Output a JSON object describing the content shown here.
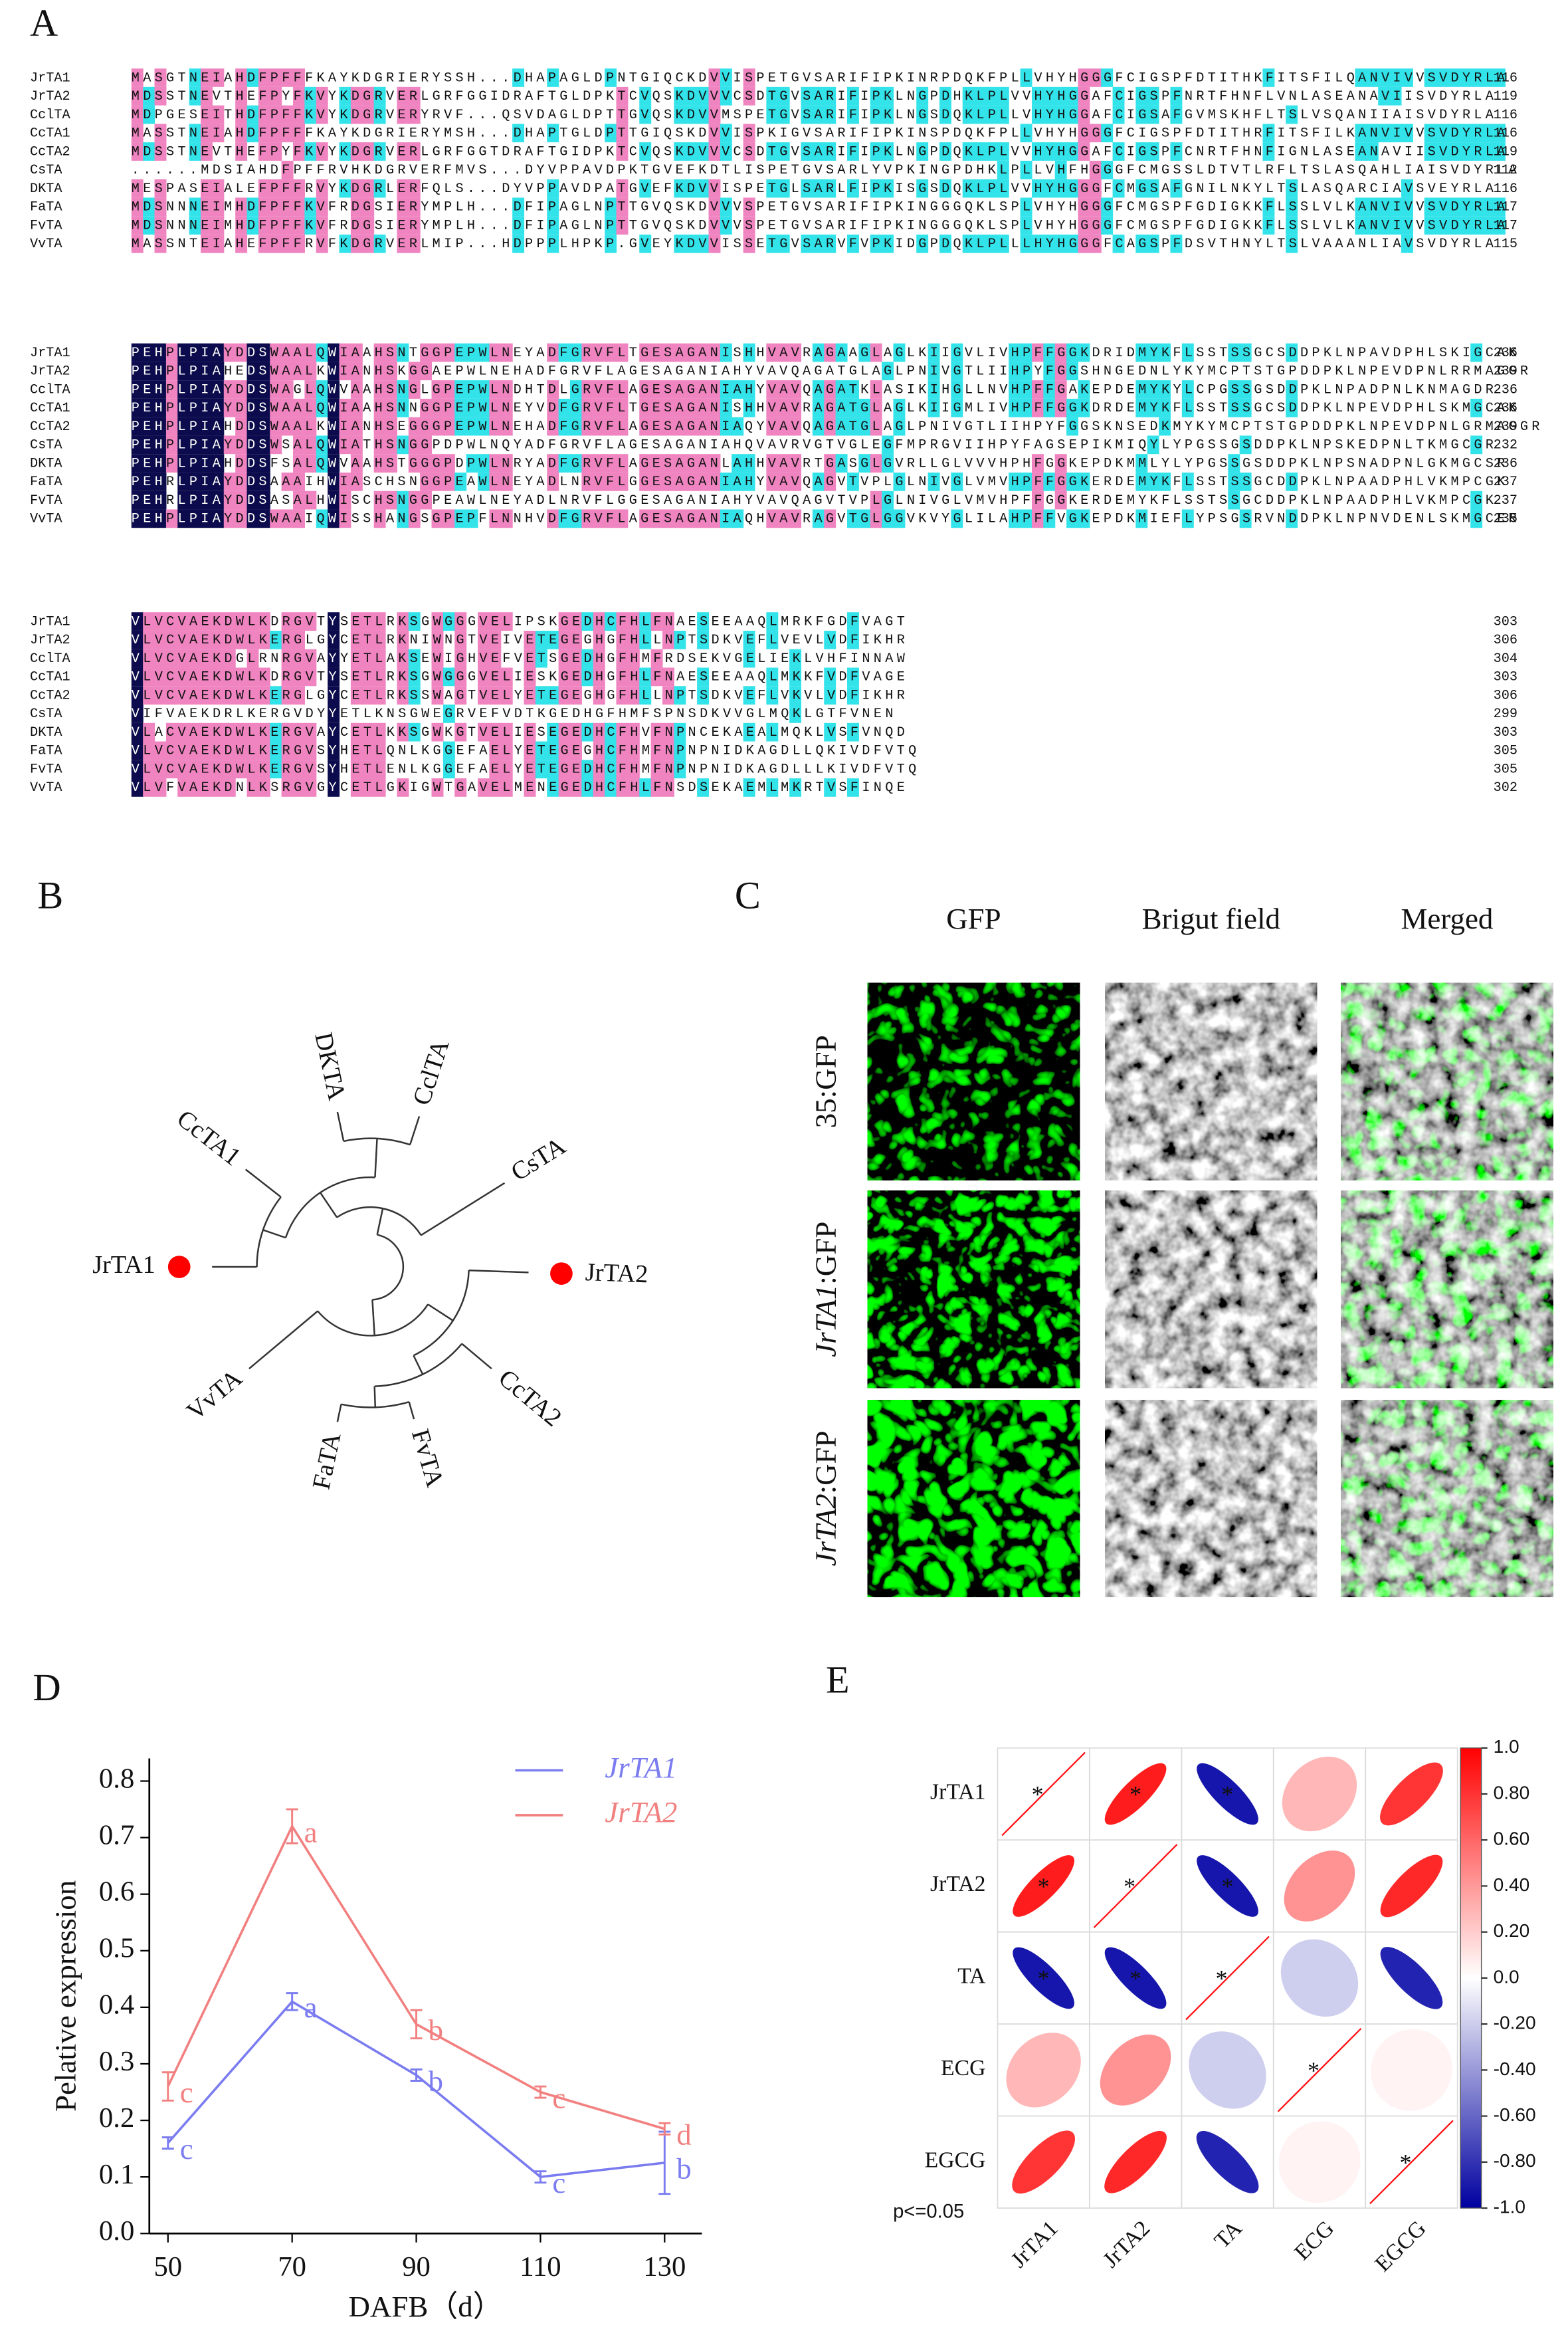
{
  "panel_labels": [
    "A",
    "B",
    "C",
    "D",
    "E"
  ],
  "alignment": {
    "blocks": [
      {
        "rows": [
          {
            "name": "JrTA1",
            "sequence": "MASGTNEIAHDFPFFFKAYKDGRIERYSSH...DHAPAGLDPNTGIQCKDVVISPETGVSARIFIPKINRPDQKFPLLVHYHGGGFCIGSPFDTITHKFITSFILQANVIVVSVDYRLA",
            "end": 116
          },
          {
            "name": "JrTA2",
            "sequence": "MDSSTNEVTHEFPYFKVYKDGRVERLGRFGGIDRAFTGLDPKTCVQSKDVVVCSDTGVSARIFIPKLNGPDHKLPLVVHYHGGAFCIGSPFNRTFHNFLVNLASEANAVIISVDYRLA",
            "end": 119
          },
          {
            "name": "CclTA",
            "sequence": "MDPGESEITHDFPFFKVYKDGRVERYRVF...QSVDAGLDPTTGVQSKDVVMSPETGVSARIFIPKLNGSDQKLPLLVHYHGGAFCIGSAFGVMSKHFLTSLVSQANIIAISVDYRLA",
            "end": 116
          },
          {
            "name": "CcTA1",
            "sequence": "MASSTNEIAHDFPFFFKAYKDGRIERYMSH...DHAPTGLDPTTGIQSKDVVISPKIGVSARIFIPKINSPDQKFPLLVHYHGGGFCIGSPFDTITHRFITSFILKANVIVVSVDYRLA",
            "end": 116
          },
          {
            "name": "CcTA2",
            "sequence": "MDSSTNEVTHEFPYFKVYKDGRVERLGRFGGTDRAFTGIDPKTCVQSKDVVVCSDTGVSARIFIPKLNGPDQKLPLVVHYHGGAFCIGSPFCNRTFHNFIGNLASEANAVIISVDYRLA",
            "end": 119
          },
          {
            "name": "CsTA",
            "sequence": "......MDSIAHDFPFFRVHKDGRVERFMVS...DYVPPAVDPKTGVEFKDTLISPETGVSARLYVPKINGPDHKLPLLVHFHGGGFCMGSSLDTVTLRFLTSLASQAHLIAISVDYRLA",
            "end": 112
          },
          {
            "name": "DKTA",
            "sequence": "MESPASEIALEFPFFRVYKDGRLERFQLS...DYVPPAVDPATGVEFKDVVISPETGLSARLFIPKISGSDQKLPLVVHYHGGGFCMGSAFGNILNKYLTSLASQARCIAVSVEYRLA",
            "end": 116
          },
          {
            "name": "FaTA",
            "sequence": "MDSNNNEIMHDFPFFKVFRDGSIERYMPLH...DFIPAGLNPTTGVQSKDVVVSPETGVSARIFIPKINGGGQKLSPLVHYHGGGFCMGSPFGDIGKKFLSSLVLKANVIVVSVDYRLA",
            "end": 117
          },
          {
            "name": "FvTA",
            "sequence": "MDSNNNEIMHDFPFFKVFRDGSIERYMPLH...DFIPAGLNPTTGVQSKDVVVSPETGVSARIFIPKINGGGQKLSPLVHYHGGGFCMGSPFGDIGKKFLSSLVLKANVIVVSVDYRLA",
            "end": 117
          },
          {
            "name": "VvTA",
            "sequence": "MASSNTEIAHEFPFFRVFKDGRVERLMIP...HDPPPLHPKP.GVEYKDVVISSETGVSARVFVPKIDGPDQKLPLLLHYHGGGFCAGSPFDSVTHNYLTSLVAAANLIAVSVDYRLA",
            "end": 115
          }
        ]
      },
      {
        "rows": [
          {
            "name": "JrTA1",
            "sequence": "PEHPLPIAYDDSWAALQWIAAHSNTGGPEPWLNEYADFGRVFLTGESAGANISHHVAVRAGAAGLAGLKIIGVLIVHPFFGGKDRIDMYKFLSSTSSGCSDDPKLNPAVDPHLSKIGCAK",
            "end": 236
          },
          {
            "name": "JrTA2",
            "sequence": "PEHPLPIAHEDSWAALKWIANHSKGGAEPWLNEHADFGRVFLAGESAGANIAHYVAVQAGATGLAGLPNIVGTLIIHPYFGGSHNGEDNLYKYMCPTSTGPDDPKLNPEVDPNLRRMAGGR",
            "end": 239
          },
          {
            "name": "CclTA",
            "sequence": "PEHPLPIAYDDSWAGLQWVAAHSNGLGPEPWLNDHTDLGRVFLAGESAGANIAHYVAVQAGATKLASIKIHGLLNVHPFFGAKEPDEMYKYLCPGSSGSDDPKLNPADPNLKNMAGDR",
            "end": 236
          },
          {
            "name": "CcTA1",
            "sequence": "PEHPLPIAYDDSWAALQWIAAHSNNGGPEPWLNEYVDFGRVFLTGESAGANISHHVAVRAGATGLAGLKIIGMLIVHPFFGGKDRDEMYKFLSSTSSGCSDDPKLNPEVDPHLSKMGCAK",
            "end": 236
          },
          {
            "name": "CcTA2",
            "sequence": "PEHPLPIAHDDSWAALKWIANHSEGGGPEPWLNEHADFGRVFLAGESAGANIAQYVAVQAGATGLAGLPNIVGTLIIHPYFGGSKNSEDKMYKYMCPTSTGPDDPKLNPEVDPNLGRMAGGR",
            "end": 239
          },
          {
            "name": "CsTA",
            "sequence": "PEHPLPIAYDDSWSALQWIATHSNGGPDPWLNQYADFGRVFLAGESAGANIAHQVAVRVGTVGLEGFMPRGVIIHPYFAGSEPIKMIQYLYPGSSGSDDPKLNPSKEDPNLTKMGCGR",
            "end": 232
          },
          {
            "name": "DKTA",
            "sequence": "PEHPLPIAHDDSFSALQWVAAHSTGGGPDPWLNRYADFGRVFLAGESAGANLAHHVAVRTGASGLGVRLLGLVVVHPHFGGKEPDKMMLYLYPGSSGSDDPKLNPSNADPNLGKMGCSR",
            "end": 236
          },
          {
            "name": "FaTA",
            "sequence": "PEHRLPIAYDDSAAAIHWIASCHSNGGPEAWLNEYADLNRVFLGGESAGANIAHYVAVQAGVTVPLGLNIVGLVMVHPFFGGKERDEMYKFLSSTSSGCDDPKLNPAADPHLVKMPCGK",
            "end": 237
          },
          {
            "name": "FvTA",
            "sequence": "PEHRLPIAYDDSASALHWISCHSNGGPEAWLNEYADLNRVFLGGESAGANIAHYVAVQAGVTVPLGLNIVGLVMVHPFFGGKERDEMYKFLSSTSSGCDDPKLNPAADPHLVKMPCGK",
            "end": 237
          },
          {
            "name": "VvTA",
            "sequence": "PEHPLPIAYDDSWAAIQWISSHANGSGPEPFLNNHVDFGRVFLAGESAGANIAQHVAVRAGVTGLGGVKVYGLILAHPFFVGKEPDKMIEFLYPSGSRVNDDPKLNPNVDENLSKMGCER",
            "end": 235
          }
        ]
      },
      {
        "rows": [
          {
            "name": "JrTA1",
            "sequence": "VLVCVAEKDWLKDRGVTYSETLRKSGWGGGVELIPSKGEDHCFHLFNAESEEAAQLMRKFGDFVAGT",
            "end": 303
          },
          {
            "name": "JrTA2",
            "sequence": "VLVCVAEKDWLKERGLGYCETLRKNIWNGTVEIVETEGEGHGFHLLNPTSDKVEFLVEVLVDFIKHR",
            "end": 306
          },
          {
            "name": "CclTA",
            "sequence": "VLVCVAEKDGLRNRGVAYYETLAKSEWIGHVEFVETSGEDHGFHMFRDSEKVGELIEKLVHFINNAW",
            "end": 304
          },
          {
            "name": "CcTA1",
            "sequence": "VLVCVAEKDWLKDRGVTYSETLRKSGWGGGVELIESKGEDHGFHLFNAESEEAAQLMKKFVDFVAGE",
            "end": 303
          },
          {
            "name": "CcTA2",
            "sequence": "VLVCVAEKDWLKERGLGYCETLRKSSWAGTVELYETEGEGHGFHLLNPTSDKVEFLVKVLVDFIKHR",
            "end": 306
          },
          {
            "name": "CsTA",
            "sequence": "VIFVAEKDRLKERGVDYYETLKNSGWEGRVEFVDTKGEDHGFHMFSPNSDKVVGLMQKLGTFVNEN",
            "end": 299
          },
          {
            "name": "DKTA",
            "sequence": "VLACVAEKDWLKERGVAYCETLKKSGWKGTVELIESEGEDHCFHVFNPNCEKAEALMQKLVSFVNQD",
            "end": 303
          },
          {
            "name": "FaTA",
            "sequence": "VLVCVAEKDWLKERGVSYHETLQNLKGGEFAELYETEGEGHCFHMFNPNPNIDKAGDLLQKIVDFVTQ",
            "end": 305
          },
          {
            "name": "FvTA",
            "sequence": "VLVCVAEKDWLKERGVSYHETLENLKGGEFAELYETEGEDHCFHMFNPNPNIDKAGDLLLKIVDFVTQ",
            "end": 305
          },
          {
            "name": "VvTA",
            "sequence": "VLVFVAEKDNLKSRGVGYCETLGKIGWTGAVELMENEGEDHCFHLFNSDSEKAEMLMKRTVSFINQE",
            "end": 302
          }
        ]
      }
    ]
  },
  "tree": {
    "leaves": [
      {
        "label": "JrTA1",
        "highlight": true
      },
      {
        "label": "CcTA1"
      },
      {
        "label": "DKTA"
      },
      {
        "label": "CclTA"
      },
      {
        "label": "CsTA"
      },
      {
        "label": "JrTA2",
        "highlight": true
      },
      {
        "label": "CcTA2"
      },
      {
        "label": "FvTA"
      },
      {
        "label": "FaTA"
      },
      {
        "label": "VvTA"
      }
    ],
    "highlight_color": "#ff0000"
  },
  "microscopy": {
    "columns": [
      "GFP",
      "Brigut field",
      "Merged"
    ],
    "rows": [
      {
        "label": "35:GFP"
      },
      {
        "gene": "JrTA1",
        "suffix": ":GFP"
      },
      {
        "gene": "JrTA2",
        "suffix": ":GFP"
      }
    ]
  },
  "chart_data": [
    {
      "type": "line",
      "x": [
        50,
        70,
        90,
        110,
        130
      ],
      "xlim": [
        47,
        136
      ],
      "xticks": [
        50,
        70,
        90,
        110,
        130
      ],
      "ylim": [
        0,
        0.84
      ],
      "yticks": [
        {
          "value": 0,
          "label": "0.0"
        },
        0.1,
        0.2,
        0.3,
        0.4,
        0.5,
        0.6,
        0.7,
        0.8
      ],
      "xlabel": "DAFB（d）",
      "ylabel": "Pelative expression",
      "legend": "upper right",
      "series": [
        {
          "name": "JrTA1",
          "color": "#7b7cf0",
          "values": [
            0.16,
            0.41,
            0.28,
            0.1,
            0.125
          ],
          "errors": [
            0.01,
            0.015,
            0.01,
            0.01,
            0.055
          ],
          "significance_letters": [
            "c",
            "a",
            "b",
            "c",
            "b"
          ]
        },
        {
          "name": "JrTA2",
          "color": "#f28080",
          "values": [
            0.26,
            0.72,
            0.37,
            0.25,
            0.185
          ],
          "errors": [
            0.025,
            0.03,
            0.025,
            0.01,
            0.01
          ],
          "significance_letters": [
            "c",
            "a",
            "b",
            "c",
            "d"
          ]
        }
      ]
    },
    {
      "type": "correlation",
      "variables": [
        "JrTA1",
        "JrTA2",
        "TA",
        "ECG",
        "EGCG"
      ],
      "matrix": [
        [
          1,
          0.95,
          -0.95,
          0.3,
          0.85
        ],
        [
          0.95,
          1,
          -0.95,
          0.45,
          0.9
        ],
        [
          -0.95,
          -0.95,
          1,
          -0.2,
          -0.9
        ],
        [
          0.3,
          0.45,
          -0.2,
          1,
          0.05
        ],
        [
          0.85,
          0.9,
          -0.9,
          0.05,
          1
        ]
      ],
      "significant": [
        [
          true,
          true,
          true,
          false,
          false
        ],
        [
          true,
          true,
          true,
          false,
          false
        ],
        [
          true,
          true,
          true,
          false,
          false
        ],
        [
          false,
          false,
          false,
          true,
          false
        ],
        [
          false,
          false,
          false,
          false,
          true
        ]
      ],
      "significance_mark": "*",
      "note": "p<=0.05",
      "colorbar_lim": [
        -1,
        1
      ],
      "colorbar_ticks": [
        {
          "value": 1,
          "label": "1.0"
        },
        {
          "value": 0.8,
          "label": "0.80"
        },
        {
          "value": 0.6,
          "label": "0.60"
        },
        {
          "value": 0.4,
          "label": "0.40"
        },
        {
          "value": 0.2,
          "label": "0.20"
        },
        {
          "value": 0,
          "label": "0.0"
        },
        {
          "value": -0.2,
          "label": "-0.20"
        },
        {
          "value": -0.4,
          "label": "-0.40"
        },
        {
          "value": -0.6,
          "label": "-0.60"
        },
        {
          "value": -0.8,
          "label": "-0.80"
        },
        {
          "value": -1,
          "label": "-1.0"
        }
      ],
      "colors": {
        "positive": "#ff1010",
        "zero": "#ffffff",
        "negative": "#0a0aa8"
      }
    }
  ]
}
